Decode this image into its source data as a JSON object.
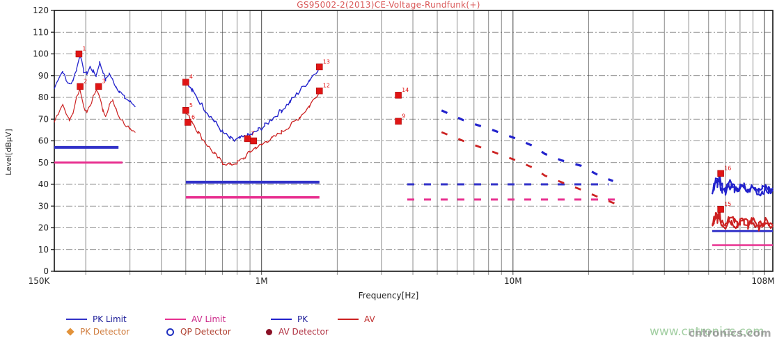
{
  "title": "GS95002-2(2013)CE-Voltage-Rundfunk(+)",
  "watermark": {
    "line1": "www.cntronics.com",
    "overlay": "cntronics.com"
  },
  "legend": {
    "rows": [
      [
        {
          "label": "PK Limit",
          "swatch": "line",
          "color": "#3232c8",
          "text_color": "#20209a"
        },
        {
          "label": "AV Limit",
          "swatch": "line",
          "color": "#e83090",
          "text_color": "#cc2a8a"
        },
        {
          "label": "PK",
          "swatch": "line",
          "color": "#2222cc",
          "text_color": "#20209a"
        },
        {
          "label": "AV",
          "swatch": "line",
          "color": "#cc2222",
          "text_color": "#c03030"
        }
      ],
      [
        {
          "label": "PK Detector",
          "swatch": "diamond",
          "color": "#e2923a",
          "text_color": "#cf7a3a"
        },
        {
          "label": "QP Detector",
          "swatch": "circle-open",
          "color": "#2030c0",
          "text_color": "#b04030"
        },
        {
          "label": "AV Detector",
          "swatch": "circle-filled",
          "color": "#8a1025",
          "text_color": "#b03040"
        }
      ]
    ]
  },
  "chart_data": {
    "type": "line",
    "title": "GS95002-2(2013)CE-Voltage-Rundfunk(+)",
    "xlabel": "Frequency[Hz]",
    "ylabel": "Level[dBµV]",
    "x_scale": "log",
    "x_range_hz": [
      150000,
      108000000
    ],
    "ylim": [
      0,
      120
    ],
    "grid": true,
    "legend_position": "bottom",
    "x_ticks": [
      {
        "hz": 150000,
        "label": "150K"
      },
      {
        "hz": 1000000,
        "label": "1M"
      },
      {
        "hz": 10000000,
        "label": "10M"
      },
      {
        "hz": 108000000,
        "label": "108M"
      }
    ],
    "y_ticks": [
      0,
      10,
      20,
      30,
      40,
      50,
      60,
      70,
      80,
      90,
      100,
      110,
      120
    ],
    "colors": {
      "pk": "#2222cc",
      "av": "#cc2222",
      "pk_limit": "#3232c8",
      "av_limit": "#e83090",
      "marker": "#e01515",
      "grid": "#3a3a3a",
      "frame": "#111111",
      "text": "#222222"
    },
    "limit_lines": [
      {
        "name": "pk-limit-lw",
        "color": "pk",
        "level": 57,
        "from_mhz": 0.15,
        "to_mhz": 0.27,
        "width": 4,
        "dashed": false
      },
      {
        "name": "av-limit-lw",
        "color": "av",
        "level": 50,
        "from_mhz": 0.15,
        "to_mhz": 0.28,
        "width": 3,
        "dashed": false
      },
      {
        "name": "pk-limit-mw",
        "color": "pk",
        "level": 41,
        "from_mhz": 0.5,
        "to_mhz": 1.7,
        "width": 4,
        "dashed": false
      },
      {
        "name": "av-limit-mw",
        "color": "av",
        "level": 34,
        "from_mhz": 0.5,
        "to_mhz": 1.7,
        "width": 3.5,
        "dashed": false
      },
      {
        "name": "pk-limit-sw",
        "color": "pk",
        "level": 40,
        "from_mhz": 3.8,
        "to_mhz": 24,
        "width": 3,
        "dashed": true
      },
      {
        "name": "av-limit-sw",
        "color": "av",
        "level": 33,
        "from_mhz": 3.8,
        "to_mhz": 26,
        "width": 3,
        "dashed": true
      },
      {
        "name": "pk-limit-fm",
        "color": "pk",
        "level": 18.5,
        "from_mhz": 62,
        "to_mhz": 108,
        "width": 3,
        "dashed": false
      },
      {
        "name": "av-limit-fm",
        "color": "av",
        "level": 12,
        "from_mhz": 62,
        "to_mhz": 108,
        "width": 2.5,
        "dashed": false
      }
    ],
    "series": [
      {
        "name": "pk-150k-300k",
        "color": "pk",
        "width": 1.3,
        "jitter": 0.9,
        "points": [
          [
            0.15,
            84
          ],
          [
            0.156,
            89
          ],
          [
            0.162,
            92
          ],
          [
            0.167,
            88
          ],
          [
            0.172,
            86
          ],
          [
            0.178,
            88
          ],
          [
            0.184,
            93
          ],
          [
            0.19,
            100
          ],
          [
            0.196,
            92
          ],
          [
            0.202,
            91
          ],
          [
            0.208,
            94
          ],
          [
            0.214,
            92
          ],
          [
            0.22,
            90
          ],
          [
            0.227,
            96
          ],
          [
            0.234,
            92
          ],
          [
            0.24,
            88
          ],
          [
            0.248,
            91
          ],
          [
            0.256,
            88
          ],
          [
            0.264,
            85
          ],
          [
            0.272,
            83
          ],
          [
            0.285,
            80
          ],
          [
            0.3,
            78
          ],
          [
            0.315,
            76
          ]
        ]
      },
      {
        "name": "av-150k-300k",
        "color": "av",
        "width": 1.2,
        "jitter": 0.9,
        "points": [
          [
            0.15,
            69
          ],
          [
            0.156,
            73
          ],
          [
            0.162,
            76
          ],
          [
            0.167,
            72
          ],
          [
            0.172,
            70
          ],
          [
            0.178,
            73
          ],
          [
            0.184,
            80
          ],
          [
            0.19,
            84
          ],
          [
            0.196,
            76
          ],
          [
            0.202,
            73
          ],
          [
            0.208,
            76
          ],
          [
            0.214,
            80
          ],
          [
            0.22,
            84
          ],
          [
            0.227,
            80
          ],
          [
            0.234,
            74
          ],
          [
            0.24,
            72
          ],
          [
            0.248,
            76
          ],
          [
            0.256,
            79
          ],
          [
            0.264,
            75
          ],
          [
            0.272,
            71
          ],
          [
            0.285,
            68
          ],
          [
            0.3,
            66
          ],
          [
            0.315,
            64
          ]
        ]
      },
      {
        "name": "pk-0p5m-1p7m",
        "color": "pk",
        "width": 1.4,
        "jitter": 1.2,
        "points": [
          [
            0.5,
            87
          ],
          [
            0.53,
            83
          ],
          [
            0.56,
            79
          ],
          [
            0.6,
            74
          ],
          [
            0.65,
            69
          ],
          [
            0.7,
            64
          ],
          [
            0.75,
            61
          ],
          [
            0.78,
            60
          ],
          [
            0.82,
            61
          ],
          [
            0.87,
            62
          ],
          [
            0.92,
            63
          ],
          [
            0.97,
            65
          ],
          [
            1.03,
            67
          ],
          [
            1.1,
            70
          ],
          [
            1.2,
            74
          ],
          [
            1.3,
            78
          ],
          [
            1.42,
            83
          ],
          [
            1.55,
            88
          ],
          [
            1.7,
            94
          ]
        ]
      },
      {
        "name": "av-0p5m-1p7m",
        "color": "av",
        "width": 1.3,
        "jitter": 1.0,
        "points": [
          [
            0.5,
            73
          ],
          [
            0.53,
            69
          ],
          [
            0.56,
            64
          ],
          [
            0.6,
            59
          ],
          [
            0.65,
            54
          ],
          [
            0.7,
            50
          ],
          [
            0.75,
            49
          ],
          [
            0.8,
            50
          ],
          [
            0.85,
            52
          ],
          [
            0.9,
            55
          ],
          [
            0.95,
            57
          ],
          [
            1.0,
            58
          ],
          [
            1.05,
            60
          ],
          [
            1.1,
            61
          ],
          [
            1.2,
            64
          ],
          [
            1.3,
            67
          ],
          [
            1.42,
            71
          ],
          [
            1.55,
            76
          ],
          [
            1.7,
            83
          ]
        ]
      },
      {
        "name": "pk-62m-108m",
        "color": "pk",
        "width": 2.2,
        "jitter": 1.7,
        "double": true,
        "points": [
          [
            62,
            37
          ],
          [
            63,
            40
          ],
          [
            64,
            43
          ],
          [
            65,
            41
          ],
          [
            66,
            44
          ],
          [
            67,
            40
          ],
          [
            68,
            39
          ],
          [
            70,
            38
          ],
          [
            72,
            41
          ],
          [
            74,
            40
          ],
          [
            76,
            39
          ],
          [
            78,
            38
          ],
          [
            80,
            40
          ],
          [
            83,
            39
          ],
          [
            86,
            38
          ],
          [
            89,
            40
          ],
          [
            92,
            39
          ],
          [
            95,
            37
          ],
          [
            98,
            38
          ],
          [
            101,
            39
          ],
          [
            104,
            38
          ],
          [
            108,
            38
          ]
        ]
      },
      {
        "name": "av-62m-108m",
        "color": "av",
        "width": 2.2,
        "jitter": 1.7,
        "double": true,
        "points": [
          [
            62,
            21
          ],
          [
            63,
            24
          ],
          [
            64,
            26
          ],
          [
            65,
            25
          ],
          [
            66,
            27
          ],
          [
            67,
            24
          ],
          [
            68,
            23
          ],
          [
            70,
            22
          ],
          [
            72,
            25
          ],
          [
            74,
            24
          ],
          [
            76,
            23
          ],
          [
            78,
            22
          ],
          [
            80,
            24
          ],
          [
            83,
            23
          ],
          [
            86,
            22
          ],
          [
            89,
            24
          ],
          [
            92,
            23
          ],
          [
            95,
            21
          ],
          [
            98,
            22
          ],
          [
            101,
            23
          ],
          [
            104,
            22
          ],
          [
            108,
            21
          ]
        ]
      }
    ],
    "dashed_series": [
      {
        "name": "pk-5m-25m",
        "color": "pk",
        "width": 3.2,
        "points": [
          [
            5.2,
            74
          ],
          [
            6.5,
            69
          ],
          [
            8.3,
            65
          ],
          [
            10.3,
            61
          ],
          [
            12.1,
            57.5
          ],
          [
            13.4,
            54
          ],
          [
            15.6,
            51
          ],
          [
            18.7,
            48.5
          ],
          [
            22,
            44
          ],
          [
            25,
            41.5
          ]
        ]
      },
      {
        "name": "av-5m-28m",
        "color": "av",
        "width": 2.8,
        "points": [
          [
            5.2,
            64
          ],
          [
            6.5,
            59.5
          ],
          [
            8.3,
            55
          ],
          [
            10.3,
            51
          ],
          [
            12.1,
            47.5
          ],
          [
            13.4,
            44
          ],
          [
            15.6,
            41
          ],
          [
            18.7,
            37.5
          ],
          [
            22,
            34
          ],
          [
            25,
            31.5
          ],
          [
            28,
            29.5
          ]
        ]
      }
    ],
    "markers": [
      {
        "f_mhz": 0.188,
        "db": 100,
        "label": "1"
      },
      {
        "f_mhz": 0.19,
        "db": 85,
        "label": "2"
      },
      {
        "f_mhz": 0.225,
        "db": 85,
        "label": "3"
      },
      {
        "f_mhz": 0.5,
        "db": 87,
        "label": "4"
      },
      {
        "f_mhz": 0.5,
        "db": 74,
        "label": "5"
      },
      {
        "f_mhz": 0.51,
        "db": 68.5,
        "label": "6"
      },
      {
        "f_mhz": 0.88,
        "db": 61,
        "label": "7"
      },
      {
        "f_mhz": 0.93,
        "db": 60,
        "label": ""
      },
      {
        "f_mhz": 1.7,
        "db": 94,
        "label": "13"
      },
      {
        "f_mhz": 1.7,
        "db": 83,
        "label": "12"
      },
      {
        "f_mhz": 3.5,
        "db": 81,
        "label": "14"
      },
      {
        "f_mhz": 3.5,
        "db": 69,
        "label": "9"
      },
      {
        "f_mhz": 67,
        "db": 45,
        "label": "16"
      },
      {
        "f_mhz": 67,
        "db": 28.5,
        "label": "15"
      }
    ]
  }
}
